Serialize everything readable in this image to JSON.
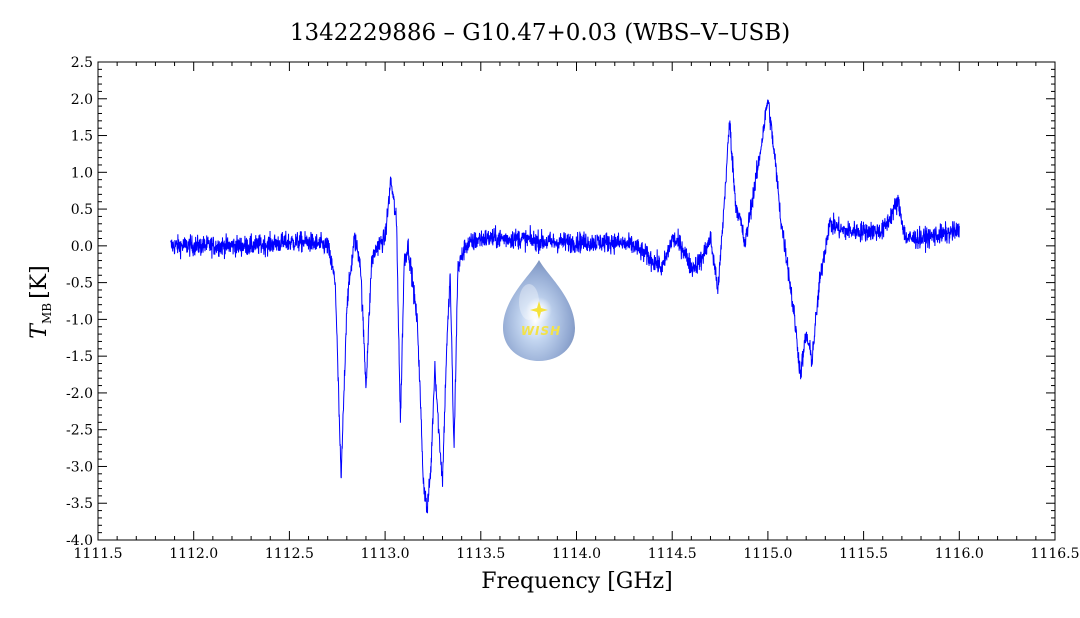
{
  "chart_data": {
    "type": "line",
    "title": "1342229886 – G10.47+0.03 (WBS–V–USB)",
    "xlabel": "Frequency [GHz]",
    "ylabel": {
      "symbol": "T",
      "subscript": "MB",
      "unit": "[K]"
    },
    "xlim": [
      1111.5,
      1116.5
    ],
    "ylim": [
      -4.0,
      2.5
    ],
    "x_ticks": [
      1111.5,
      1112.0,
      1112.5,
      1113.0,
      1113.5,
      1114.0,
      1114.5,
      1115.0,
      1115.5,
      1116.0,
      1116.5
    ],
    "y_ticks": [
      2.5,
      2.0,
      1.5,
      1.0,
      0.5,
      0.0,
      -0.5,
      -1.0,
      -1.5,
      -2.0,
      -2.5,
      -3.0,
      -3.5,
      -4.0
    ],
    "grid": false,
    "series": [
      {
        "color": "#0000ff",
        "x_range": [
          1111.88,
          1116.0
        ],
        "noise_rms": 0.07,
        "x": [
          1111.88,
          1112.0,
          1112.3,
          1112.5,
          1112.6,
          1112.7,
          1112.74,
          1112.77,
          1112.8,
          1112.84,
          1112.87,
          1112.9,
          1112.93,
          1112.96,
          1113.0,
          1113.03,
          1113.06,
          1113.08,
          1113.1,
          1113.12,
          1113.14,
          1113.17,
          1113.2,
          1113.22,
          1113.24,
          1113.26,
          1113.28,
          1113.3,
          1113.32,
          1113.34,
          1113.36,
          1113.38,
          1113.42,
          1113.5,
          1113.7,
          1113.85,
          1114.0,
          1114.2,
          1114.3,
          1114.4,
          1114.45,
          1114.5,
          1114.55,
          1114.6,
          1114.65,
          1114.7,
          1114.74,
          1114.77,
          1114.8,
          1114.83,
          1114.86,
          1114.88,
          1114.91,
          1114.95,
          1115.0,
          1115.04,
          1115.07,
          1115.1,
          1115.14,
          1115.17,
          1115.2,
          1115.23,
          1115.27,
          1115.32,
          1115.4,
          1115.6,
          1115.68,
          1115.72,
          1115.8,
          1116.0
        ],
        "y": [
          0.0,
          0.0,
          0.0,
          0.05,
          0.05,
          0.0,
          -0.5,
          -3.2,
          -0.8,
          0.1,
          -0.2,
          -1.9,
          -0.2,
          0.0,
          0.1,
          0.9,
          0.3,
          -2.4,
          -0.2,
          0.0,
          -0.4,
          -1.1,
          -3.2,
          -3.6,
          -3.0,
          -1.6,
          -2.5,
          -3.2,
          -1.5,
          -0.4,
          -2.8,
          -0.3,
          0.0,
          0.1,
          0.1,
          0.05,
          0.05,
          0.05,
          0.0,
          -0.2,
          -0.3,
          0.1,
          0.0,
          -0.3,
          -0.2,
          0.1,
          -0.6,
          0.5,
          1.7,
          0.6,
          0.3,
          0.0,
          0.5,
          1.1,
          2.0,
          1.1,
          0.3,
          -0.2,
          -1.0,
          -1.75,
          -1.2,
          -1.55,
          -0.5,
          0.3,
          0.2,
          0.2,
          0.6,
          0.1,
          0.1,
          0.2
        ]
      }
    ]
  },
  "logo": {
    "text": "WISH"
  }
}
